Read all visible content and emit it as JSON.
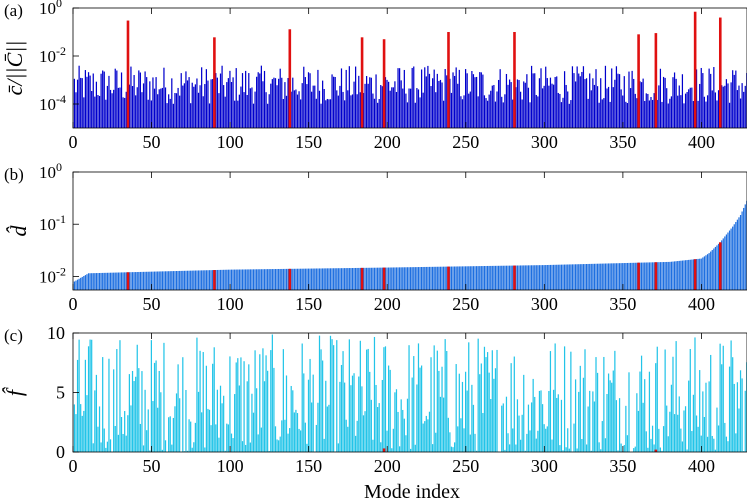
{
  "figure": {
    "xlabel": "Mode index"
  },
  "colors": {
    "panel_a_bars": "#0000cc",
    "panel_b_bars": "#1e6fe0",
    "panel_c_bars": "#22c4e8",
    "highlight": "#e01010"
  },
  "chart_data": [
    {
      "type": "bar",
      "panel_label": "(a)",
      "ylabel": "c̄/||C̄||",
      "yscale": "log",
      "ylim": [
        1e-05,
        1
      ],
      "yticks": [
        {
          "base": "10",
          "exp": "-4",
          "value": 0.0001
        },
        {
          "base": "10",
          "exp": "-2",
          "value": 0.01
        },
        {
          "base": "10",
          "exp": "0",
          "value": 1
        }
      ],
      "xlim": [
        0,
        429
      ],
      "xticks": [
        0,
        50,
        100,
        150,
        200,
        250,
        300,
        350,
        400
      ],
      "n_modes": 429,
      "background_level_range": [
        0.0001,
        0.004
      ],
      "highlighted_modes": [
        {
          "x": 35,
          "value": 0.3
        },
        {
          "x": 90,
          "value": 0.06
        },
        {
          "x": 138,
          "value": 0.13
        },
        {
          "x": 184,
          "value": 0.06
        },
        {
          "x": 198,
          "value": 0.05
        },
        {
          "x": 239,
          "value": 0.1
        },
        {
          "x": 281,
          "value": 0.1
        },
        {
          "x": 360,
          "value": 0.08
        },
        {
          "x": 371,
          "value": 0.09
        },
        {
          "x": 396,
          "value": 0.7
        },
        {
          "x": 412,
          "value": 0.4
        }
      ]
    },
    {
      "type": "bar",
      "panel_label": "(b)",
      "ylabel": "d̂",
      "yscale": "log",
      "ylim": [
        0.0055,
        1
      ],
      "yticks": [
        {
          "base": "10",
          "exp": "-2",
          "value": 0.01
        },
        {
          "base": "10",
          "exp": "-1",
          "value": 0.1
        },
        {
          "base": "10",
          "exp": "0",
          "value": 1
        }
      ],
      "xlim": [
        0,
        429
      ],
      "xticks": [
        0,
        50,
        100,
        150,
        200,
        250,
        300,
        350,
        400
      ],
      "n_modes": 429,
      "profile": [
        {
          "x": 1,
          "value": 0.008
        },
        {
          "x": 10,
          "value": 0.0115
        },
        {
          "x": 100,
          "value": 0.0135
        },
        {
          "x": 200,
          "value": 0.0148
        },
        {
          "x": 300,
          "value": 0.0165
        },
        {
          "x": 380,
          "value": 0.019
        },
        {
          "x": 400,
          "value": 0.022
        },
        {
          "x": 405,
          "value": 0.028
        },
        {
          "x": 412,
          "value": 0.045
        },
        {
          "x": 420,
          "value": 0.09
        },
        {
          "x": 425,
          "value": 0.15
        },
        {
          "x": 429,
          "value": 0.28
        }
      ],
      "highlighted_modes": [
        35,
        90,
        138,
        184,
        198,
        239,
        281,
        360,
        371,
        396,
        412
      ]
    },
    {
      "type": "bar",
      "panel_label": "(c)",
      "ylabel": "f̂",
      "yscale": "linear",
      "ylim": [
        0,
        10
      ],
      "yticks": [
        0,
        5,
        10
      ],
      "xlim": [
        0,
        429
      ],
      "xticks": [
        0,
        50,
        100,
        150,
        200,
        250,
        300,
        350,
        400
      ],
      "n_modes": 429,
      "value_range": [
        0,
        10
      ],
      "highlighted_modes": [
        {
          "x": 198,
          "value": 0.3
        },
        {
          "x": 371,
          "value": 0.2
        }
      ]
    }
  ]
}
